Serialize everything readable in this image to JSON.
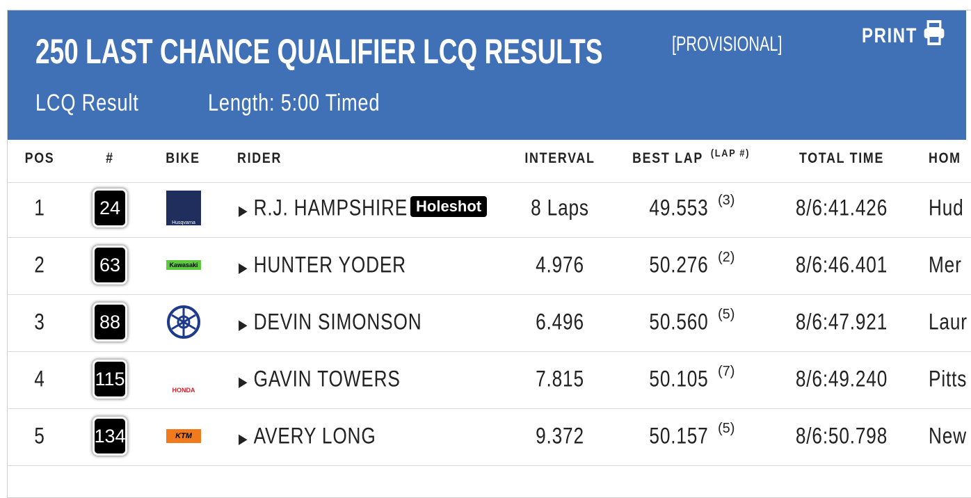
{
  "header": {
    "title": "250 LAST CHANCE QUALIFIER LCQ RESULTS",
    "tag": "[PROVISIONAL]",
    "print": "PRINT",
    "result_type": "LCQ Result",
    "length": "Length: 5:00 Timed"
  },
  "table": {
    "columns": [
      "POS",
      "#",
      "BIKE",
      "RIDER",
      "INTERVAL",
      "BEST LAP",
      "(LAP #)",
      "TOTAL TIME",
      "HOM"
    ],
    "rows": [
      {
        "pos": "1",
        "number": "24",
        "bike": "Husqvarna",
        "rider": "R.J. HAMPSHIRE",
        "badge": "Holeshot",
        "interval": "8 Laps",
        "best_lap": "49.553",
        "lap": "(3)",
        "total": "8/6:41.426",
        "home": "Hud"
      },
      {
        "pos": "2",
        "number": "63",
        "bike": "Kawasaki",
        "rider": "HUNTER YODER",
        "badge": null,
        "interval": "4.976",
        "best_lap": "50.276",
        "lap": "(2)",
        "total": "8/6:46.401",
        "home": "Mer"
      },
      {
        "pos": "3",
        "number": "88",
        "bike": null,
        "rider": "DEVIN SIMONSON",
        "badge": null,
        "interval": "6.496",
        "best_lap": "50.560",
        "lap": "(5)",
        "total": "8/6:47.921",
        "home": "Laur"
      },
      {
        "pos": "4",
        "number": "115",
        "bike": "HONDA",
        "rider": "GAVIN TOWERS",
        "badge": null,
        "interval": "7.815",
        "best_lap": "50.105",
        "lap": "(7)",
        "total": "8/6:49.240",
        "home": "Pitts"
      },
      {
        "pos": "5",
        "number": "134",
        "bike": "KTM",
        "rider": "AVERY LONG",
        "badge": null,
        "interval": "9.372",
        "best_lap": "50.157",
        "lap": "(5)",
        "total": "8/6:50.798",
        "home": "New"
      }
    ]
  }
}
